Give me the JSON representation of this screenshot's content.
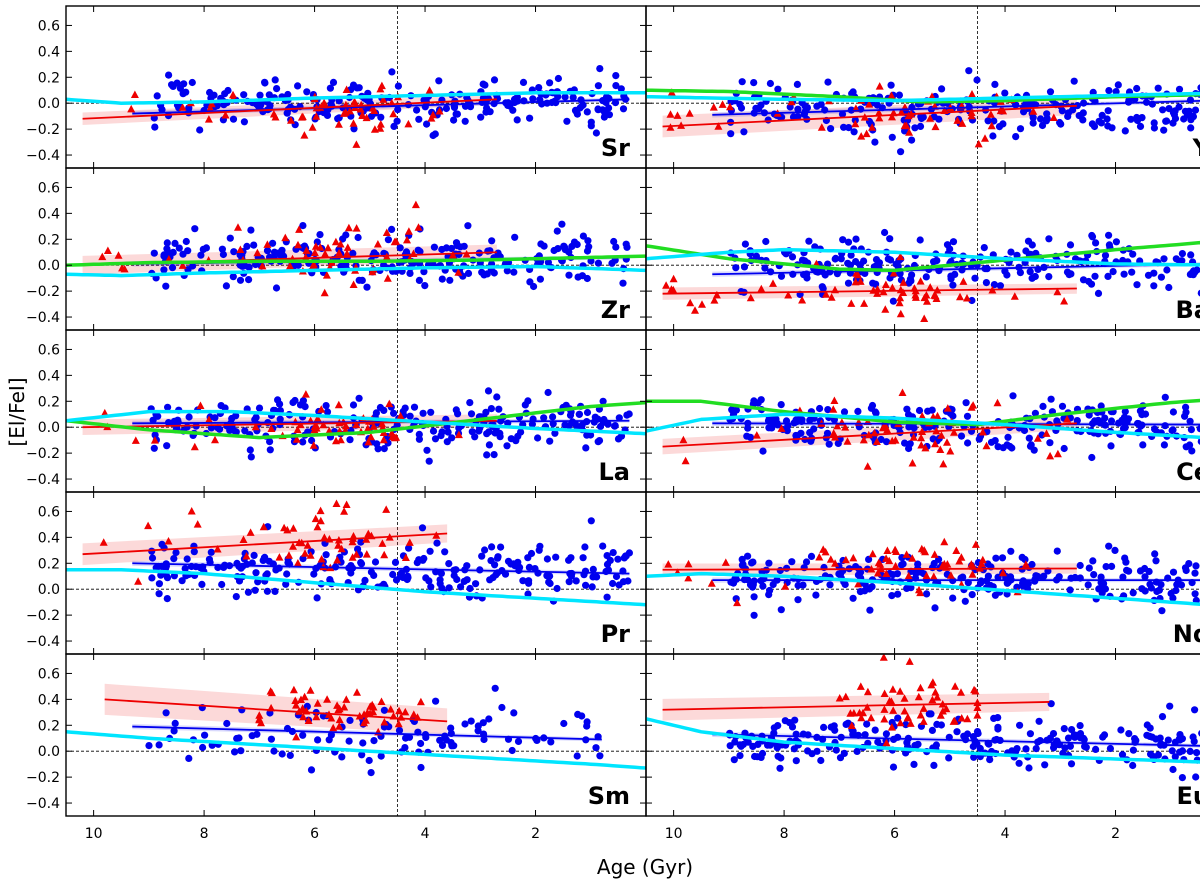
{
  "figure": {
    "xlabel": "Age (Gyr)",
    "ylabel": "[El/FeI]"
  },
  "colors": {
    "dwarfs": "#0000ee",
    "giants": "#ee0000",
    "model_cyan": "#00e5ff",
    "model_green": "#22dd22",
    "axis": "#000000"
  },
  "chart_data": {
    "type": "scatter",
    "layout": "5x2 panel grid",
    "x_axis": {
      "label": "Age (Gyr)",
      "range": [
        10.5,
        0
      ],
      "ticks": [
        10,
        8,
        6,
        4,
        2
      ]
    },
    "y_axis": {
      "label": "[El/FeI]",
      "range": [
        -0.5,
        0.75
      ],
      "ticks": [
        -0.4,
        -0.2,
        0.0,
        0.2,
        0.4,
        0.6
      ]
    },
    "reference_age": 4.5,
    "panels": [
      {
        "element": "Sr",
        "blue_fit": {
          "x": [
            9.3,
            0.3
          ],
          "y": [
            -0.08,
            0.03
          ]
        },
        "red_fit": {
          "x": [
            10.2,
            2.7
          ],
          "y": [
            -0.12,
            0.03
          ]
        },
        "red_band": 0.04,
        "cyan_model": {
          "x": [
            10.5,
            9.5,
            8,
            6,
            4,
            2,
            0
          ],
          "y": [
            0.03,
            0.0,
            0.01,
            0.04,
            0.06,
            0.08,
            0.08
          ]
        },
        "blue_points": {
          "n": 240,
          "x_range": [
            9.0,
            0.3
          ],
          "y_center": 0.0,
          "y_spread": 0.09
        },
        "red_points": {
          "n": 55,
          "x_range": [
            10.2,
            2.7
          ],
          "y_center": -0.06,
          "y_spread": 0.09
        }
      },
      {
        "element": "Y",
        "blue_fit": {
          "x": [
            9.3,
            0.3
          ],
          "y": [
            -0.09,
            0.02
          ]
        },
        "red_fit": {
          "x": [
            10.2,
            2.7
          ],
          "y": [
            -0.18,
            -0.02
          ]
        },
        "red_band": 0.07,
        "cyan_model": {
          "x": [
            10.5,
            8,
            6,
            4,
            2,
            0
          ],
          "y": [
            0.05,
            0.03,
            0.02,
            0.04,
            0.06,
            0.08
          ]
        },
        "green_model": {
          "x": [
            10.5,
            9,
            7,
            5.5,
            4,
            2,
            0
          ],
          "y": [
            0.1,
            0.09,
            0.05,
            0.01,
            0.02,
            0.05,
            0.07
          ]
        },
        "blue_points": {
          "n": 240,
          "x_range": [
            9.0,
            0.3
          ],
          "y_center": -0.04,
          "y_spread": 0.1
        },
        "red_points": {
          "n": 60,
          "x_range": [
            10.2,
            2.7
          ],
          "y_center": -0.08,
          "y_spread": 0.12
        }
      },
      {
        "element": "Zr",
        "blue_fit": {
          "x": [
            9.3,
            0.3
          ],
          "y": [
            0.01,
            0.06
          ]
        },
        "red_fit": {
          "x": [
            10.2,
            2.7
          ],
          "y": [
            0.0,
            0.1
          ]
        },
        "red_band": 0.06,
        "cyan_model": {
          "x": [
            10.5,
            9.5,
            8,
            6,
            4,
            2,
            0
          ],
          "y": [
            -0.07,
            -0.08,
            -0.06,
            -0.04,
            -0.02,
            -0.01,
            -0.04
          ]
        },
        "green_model": {
          "x": [
            10.5,
            9,
            7,
            5,
            3,
            1,
            0
          ],
          "y": [
            0.0,
            0.02,
            0.03,
            0.03,
            0.04,
            0.06,
            0.07
          ]
        },
        "blue_points": {
          "n": 240,
          "x_range": [
            9.0,
            0.3
          ],
          "y_center": 0.04,
          "y_spread": 0.1
        },
        "red_points": {
          "n": 60,
          "x_range": [
            10.2,
            2.7
          ],
          "y_center": 0.08,
          "y_spread": 0.12
        }
      },
      {
        "element": "Ba",
        "blue_fit": {
          "x": [
            9.3,
            0.3
          ],
          "y": [
            -0.07,
            0.01
          ]
        },
        "red_fit": {
          "x": [
            10.2,
            2.7
          ],
          "y": [
            -0.22,
            -0.18
          ]
        },
        "red_band": 0.04,
        "cyan_model": {
          "x": [
            10.5,
            9,
            8,
            6,
            4,
            2,
            0
          ],
          "y": [
            0.05,
            0.1,
            0.12,
            0.1,
            0.05,
            0.01,
            0.0
          ]
        },
        "green_model": {
          "x": [
            10.5,
            9,
            7,
            6,
            4,
            2,
            0
          ],
          "y": [
            0.15,
            0.05,
            -0.03,
            -0.04,
            0.04,
            0.12,
            0.19
          ]
        },
        "blue_points": {
          "n": 240,
          "x_range": [
            9.0,
            0.3
          ],
          "y_center": 0.0,
          "y_spread": 0.1
        },
        "red_points": {
          "n": 60,
          "x_range": [
            10.2,
            2.7
          ],
          "y_center": -0.22,
          "y_spread": 0.08
        }
      },
      {
        "element": "La",
        "blue_fit": {
          "x": [
            9.3,
            0.3
          ],
          "y": [
            0.03,
            0.05
          ]
        },
        "red_fit": {
          "x": [
            10.2,
            2.7
          ],
          "y": [
            0.0,
            0.05
          ]
        },
        "red_band": 0.05,
        "cyan_model": {
          "x": [
            10.5,
            9,
            7.5,
            6,
            4,
            2,
            0
          ],
          "y": [
            0.05,
            0.12,
            0.12,
            0.09,
            0.04,
            -0.01,
            -0.05
          ]
        },
        "green_model": {
          "x": [
            10.5,
            9,
            7,
            5,
            3,
            1,
            0
          ],
          "y": [
            0.05,
            -0.02,
            -0.08,
            -0.04,
            0.06,
            0.16,
            0.19
          ]
        },
        "blue_points": {
          "n": 240,
          "x_range": [
            9.0,
            0.3
          ],
          "y_center": 0.03,
          "y_spread": 0.1
        },
        "red_points": {
          "n": 55,
          "x_range": [
            10.2,
            2.7
          ],
          "y_center": 0.0,
          "y_spread": 0.1
        }
      },
      {
        "element": "Ce",
        "blue_fit": {
          "x": [
            9.3,
            0.3
          ],
          "y": [
            0.03,
            0.02
          ]
        },
        "red_fit": {
          "x": [
            10.2,
            2.7
          ],
          "y": [
            -0.15,
            0.03
          ]
        },
        "red_band": 0.05,
        "cyan_model": {
          "x": [
            10.5,
            9.5,
            8,
            6,
            4,
            2,
            0
          ],
          "y": [
            -0.03,
            0.06,
            0.1,
            0.07,
            0.02,
            -0.04,
            -0.09
          ]
        },
        "green_model": {
          "x": [
            10.5,
            9.5,
            8,
            6,
            4.5,
            3,
            1,
            0
          ],
          "y": [
            0.2,
            0.2,
            0.12,
            0.04,
            0.02,
            0.1,
            0.19,
            0.22
          ]
        },
        "blue_points": {
          "n": 240,
          "x_range": [
            9.0,
            0.3
          ],
          "y_center": 0.02,
          "y_spread": 0.1
        },
        "red_points": {
          "n": 60,
          "x_range": [
            10.2,
            2.7
          ],
          "y_center": -0.03,
          "y_spread": 0.12
        }
      },
      {
        "element": "Pr",
        "blue_fit": {
          "x": [
            9.3,
            0.3
          ],
          "y": [
            0.2,
            0.12
          ]
        },
        "red_fit": {
          "x": [
            10.2,
            3.6
          ],
          "y": [
            0.27,
            0.43
          ]
        },
        "red_band": 0.07,
        "cyan_model": {
          "x": [
            10.5,
            9.5,
            8,
            6,
            4,
            2,
            0
          ],
          "y": [
            0.15,
            0.15,
            0.12,
            0.05,
            -0.02,
            -0.07,
            -0.12
          ]
        },
        "blue_points": {
          "n": 240,
          "x_range": [
            9.0,
            0.3
          ],
          "y_center": 0.16,
          "y_spread": 0.1
        },
        "red_points": {
          "n": 55,
          "x_range": [
            10.2,
            3.6
          ],
          "y_center": 0.38,
          "y_spread": 0.12
        }
      },
      {
        "element": "Nd",
        "blue_fit": {
          "x": [
            9.3,
            0.3
          ],
          "y": [
            0.07,
            0.07
          ]
        },
        "red_fit": {
          "x": [
            10.2,
            2.7
          ],
          "y": [
            0.15,
            0.16
          ]
        },
        "red_band": 0.04,
        "cyan_model": {
          "x": [
            10.5,
            9.5,
            8,
            6,
            4,
            2,
            0
          ],
          "y": [
            0.1,
            0.12,
            0.1,
            0.05,
            -0.01,
            -0.07,
            -0.13
          ]
        },
        "blue_points": {
          "n": 240,
          "x_range": [
            9.0,
            0.3
          ],
          "y_center": 0.08,
          "y_spread": 0.1
        },
        "red_points": {
          "n": 60,
          "x_range": [
            10.2,
            2.7
          ],
          "y_center": 0.16,
          "y_spread": 0.1
        }
      },
      {
        "element": "Sm",
        "blue_fit": {
          "x": [
            9.3,
            0.8
          ],
          "y": [
            0.19,
            0.09
          ]
        },
        "red_fit": {
          "x": [
            9.8,
            3.6
          ],
          "y": [
            0.4,
            0.23
          ]
        },
        "red_band": 0.1,
        "cyan_model": {
          "x": [
            10.5,
            9,
            7,
            5,
            3,
            1,
            0
          ],
          "y": [
            0.15,
            0.1,
            0.05,
            0.0,
            -0.05,
            -0.1,
            -0.13
          ]
        },
        "blue_points": {
          "n": 110,
          "x_range": [
            9.0,
            0.8
          ],
          "y_center": 0.12,
          "y_spread": 0.11
        },
        "red_points": {
          "n": 55,
          "x_range": [
            7.0,
            4.0
          ],
          "y_center": 0.3,
          "y_spread": 0.09
        }
      },
      {
        "element": "Eu",
        "blue_fit": {
          "x": [
            9.3,
            0.3
          ],
          "y": [
            0.13,
            0.04
          ]
        },
        "red_fit": {
          "x": [
            10.2,
            3.2
          ],
          "y": [
            0.32,
            0.38
          ]
        },
        "red_band": 0.07,
        "cyan_model": {
          "x": [
            10.5,
            9.5,
            8,
            6,
            4,
            2,
            0
          ],
          "y": [
            0.25,
            0.15,
            0.07,
            0.02,
            -0.03,
            -0.06,
            -0.09
          ]
        },
        "blue_points": {
          "n": 240,
          "x_range": [
            9.0,
            0.3
          ],
          "y_center": 0.06,
          "y_spread": 0.09
        },
        "red_points": {
          "n": 55,
          "x_range": [
            7.0,
            4.5
          ],
          "y_center": 0.35,
          "y_spread": 0.14
        }
      }
    ]
  }
}
